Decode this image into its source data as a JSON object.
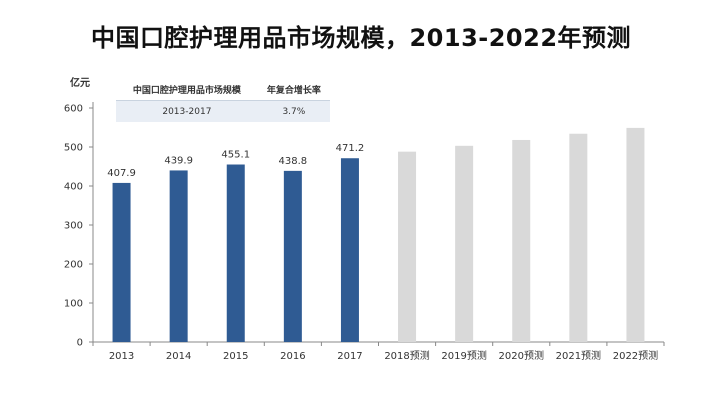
{
  "title": "中国口腔护理用品市场规模，2013-2022年预测",
  "colors": {
    "actual": "#2f5b93",
    "forecast": "#d9d9d9",
    "axis": "#888888"
  },
  "table": {
    "headers": [
      "中国口腔护理用品市场规模",
      "年复合增长率"
    ],
    "rows": [
      [
        "2013-2017",
        "3.7%"
      ]
    ]
  },
  "chart_data": {
    "type": "bar",
    "unit_label": "亿元",
    "ylim": [
      0,
      600
    ],
    "yticks": [
      0,
      100,
      200,
      300,
      400,
      500,
      600
    ],
    "categories": [
      "2013",
      "2014",
      "2015",
      "2016",
      "2017",
      "2018预测",
      "2019预测",
      "2020预测",
      "2021预测",
      "2022预测"
    ],
    "values": [
      407.9,
      439.9,
      455.1,
      438.8,
      471.2,
      488,
      503,
      518,
      534,
      549
    ],
    "value_labels": [
      "407.9",
      "439.9",
      "455.1",
      "438.8",
      "471.2",
      "",
      "",
      "",
      "",
      ""
    ],
    "forecast": [
      false,
      false,
      false,
      false,
      false,
      true,
      true,
      true,
      true,
      true
    ],
    "grid": false
  }
}
